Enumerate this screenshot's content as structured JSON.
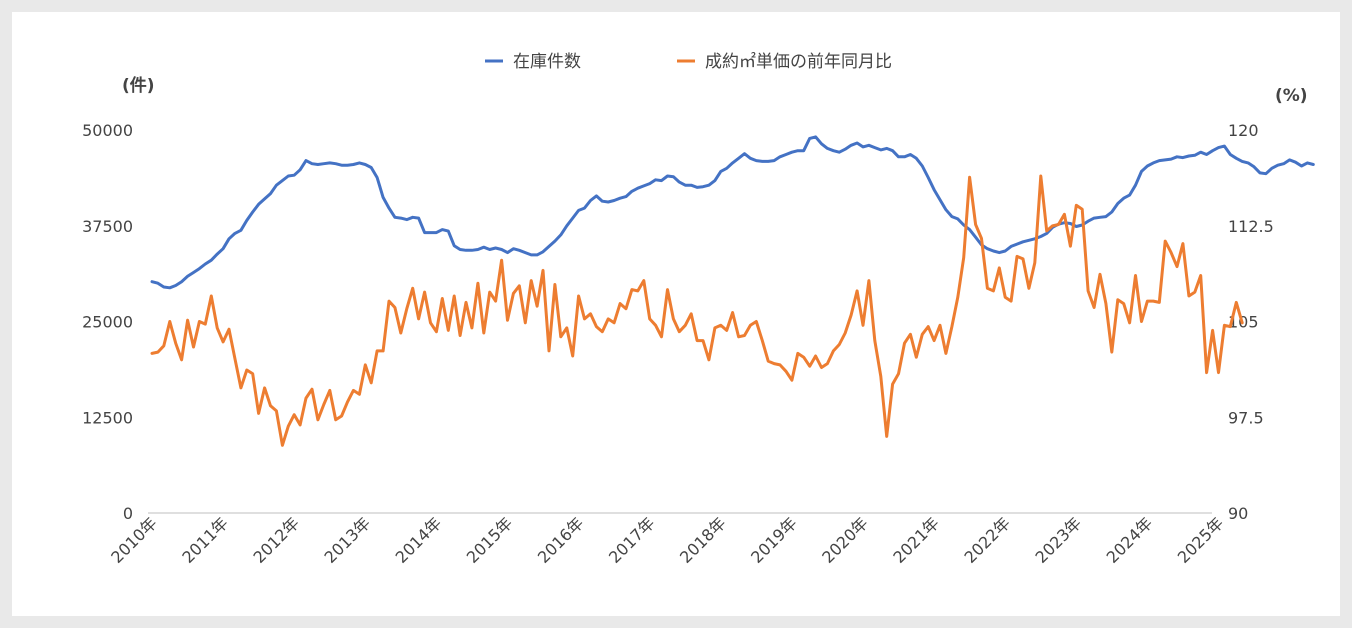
{
  "chart_data": {
    "type": "line",
    "title": "",
    "x_tick_labels": [
      "2010年",
      "2011年",
      "2012年",
      "2013年",
      "2014年",
      "2015年",
      "2016年",
      "2017年",
      "2018年",
      "2019年",
      "2020年",
      "2021年",
      "2022年",
      "2023年",
      "2024年",
      "2025年"
    ],
    "left_axis": {
      "unit_label": "(件)",
      "range": [
        0,
        50000
      ],
      "ticks": [
        "0",
        "12500",
        "25000",
        "37500",
        "50000"
      ]
    },
    "right_axis": {
      "unit_label": "(%)",
      "range": [
        90,
        120
      ],
      "ticks": [
        "90",
        "97.5",
        "105",
        "112.5",
        "120"
      ]
    },
    "legend_position": "top-center",
    "grid": false,
    "series": [
      {
        "name": "在庫件数",
        "color": "#4472c4",
        "axis": "left",
        "x_start": "2010-01",
        "frequency": "monthly",
        "values": [
          30200,
          30000,
          29500,
          29400,
          29700,
          30200,
          30900,
          31400,
          31900,
          32500,
          33000,
          33800,
          34500,
          35800,
          36500,
          36900,
          38200,
          39300,
          40300,
          41000,
          41700,
          42800,
          43400,
          44000,
          44100,
          44800,
          46000,
          45600,
          45500,
          45600,
          45700,
          45600,
          45400,
          45400,
          45500,
          45700,
          45500,
          45100,
          43800,
          41200,
          39800,
          38600,
          38500,
          38300,
          38600,
          38500,
          36600,
          36600,
          36600,
          37000,
          36800,
          34900,
          34400,
          34300,
          34300,
          34400,
          34700,
          34400,
          34600,
          34400,
          34000,
          34500,
          34300,
          34000,
          33700,
          33700,
          34100,
          34800,
          35500,
          36300,
          37500,
          38500,
          39500,
          39800,
          40800,
          41400,
          40700,
          40600,
          40800,
          41100,
          41300,
          42000,
          42400,
          42700,
          43000,
          43500,
          43400,
          44000,
          43900,
          43200,
          42800,
          42800,
          42500,
          42600,
          42800,
          43400,
          44600,
          45000,
          45700,
          46300,
          46900,
          46300,
          46000,
          45900,
          45900,
          46000,
          46500,
          46800,
          47100,
          47300,
          47300,
          48900,
          49100,
          48200,
          47600,
          47300,
          47100,
          47500,
          48000,
          48300,
          47800,
          48000,
          47700,
          47400,
          47600,
          47300,
          46500,
          46500,
          46800,
          46300,
          45300,
          43800,
          42200,
          40900,
          39600,
          38700,
          38400,
          37600,
          37000,
          36000,
          35000,
          34500,
          34200,
          34000,
          34200,
          34800,
          35100,
          35400,
          35600,
          35800,
          36100,
          36500,
          37300,
          37700,
          37900,
          37800,
          37400,
          37600,
          38100,
          38500,
          38600,
          38700,
          39300,
          40400,
          41100,
          41500,
          42800,
          44600,
          45300,
          45700,
          46000,
          46100,
          46200,
          46500,
          46400,
          46600,
          46700,
          47100,
          46800,
          47300,
          47700,
          47900,
          46800,
          46300,
          45900,
          45700,
          45200,
          44400,
          44300,
          45000,
          45400,
          45600,
          46100,
          45800,
          45300,
          45700,
          45500
        ]
      },
      {
        "name": "成約㎡単価の前年同月比",
        "color": "#ed7d31",
        "axis": "right",
        "x_start": "2010-01",
        "frequency": "monthly",
        "values": [
          102.5,
          102.6,
          103.1,
          105.0,
          103.3,
          102.0,
          105.1,
          103.0,
          105.0,
          104.8,
          107.0,
          104.5,
          103.4,
          104.4,
          102.1,
          99.8,
          101.2,
          100.9,
          97.8,
          99.8,
          98.4,
          98.0,
          95.3,
          96.8,
          97.7,
          96.9,
          99.0,
          99.7,
          97.3,
          98.5,
          99.6,
          97.3,
          97.6,
          98.7,
          99.6,
          99.3,
          101.6,
          100.2,
          102.7,
          102.7,
          106.6,
          106.1,
          104.1,
          106.0,
          107.6,
          105.2,
          107.3,
          104.9,
          104.2,
          106.8,
          104.3,
          107.0,
          103.9,
          106.5,
          104.5,
          108.0,
          104.1,
          107.3,
          106.6,
          109.8,
          105.1,
          107.2,
          107.8,
          104.9,
          108.2,
          106.2,
          109.0,
          102.7,
          107.9,
          103.8,
          104.5,
          102.3,
          107.0,
          105.2,
          105.6,
          104.6,
          104.2,
          105.2,
          104.9,
          106.4,
          106.0,
          107.5,
          107.4,
          108.2,
          105.2,
          104.7,
          103.8,
          107.5,
          105.2,
          104.2,
          104.7,
          105.6,
          103.5,
          103.5,
          102.0,
          104.5,
          104.7,
          104.3,
          105.7,
          103.8,
          103.9,
          104.7,
          105.0,
          103.5,
          101.9,
          101.7,
          101.6,
          101.1,
          100.4,
          102.5,
          102.2,
          101.5,
          102.3,
          101.4,
          101.7,
          102.7,
          103.2,
          104.1,
          105.5,
          107.4,
          104.7,
          108.2,
          103.5,
          100.7,
          96.0,
          100.1,
          100.9,
          103.3,
          104.0,
          102.2,
          104.0,
          104.6,
          103.5,
          104.7,
          102.5,
          104.6,
          106.9,
          110.0,
          116.3,
          112.6,
          111.5,
          107.6,
          107.4,
          109.2,
          106.9,
          106.6,
          110.1,
          109.9,
          107.6,
          109.6,
          116.4,
          112.1,
          112.5,
          112.6,
          113.4,
          110.9,
          114.1,
          113.8,
          107.4,
          106.1,
          108.7,
          106.4,
          102.6,
          106.7,
          106.4,
          104.9,
          108.6,
          105.0,
          106.6,
          106.6,
          106.5,
          111.3,
          110.4,
          109.3,
          111.1,
          107.0,
          107.3,
          108.6,
          101.0,
          104.3,
          101.0,
          104.7,
          104.6,
          106.5,
          104.9
        ]
      }
    ]
  }
}
